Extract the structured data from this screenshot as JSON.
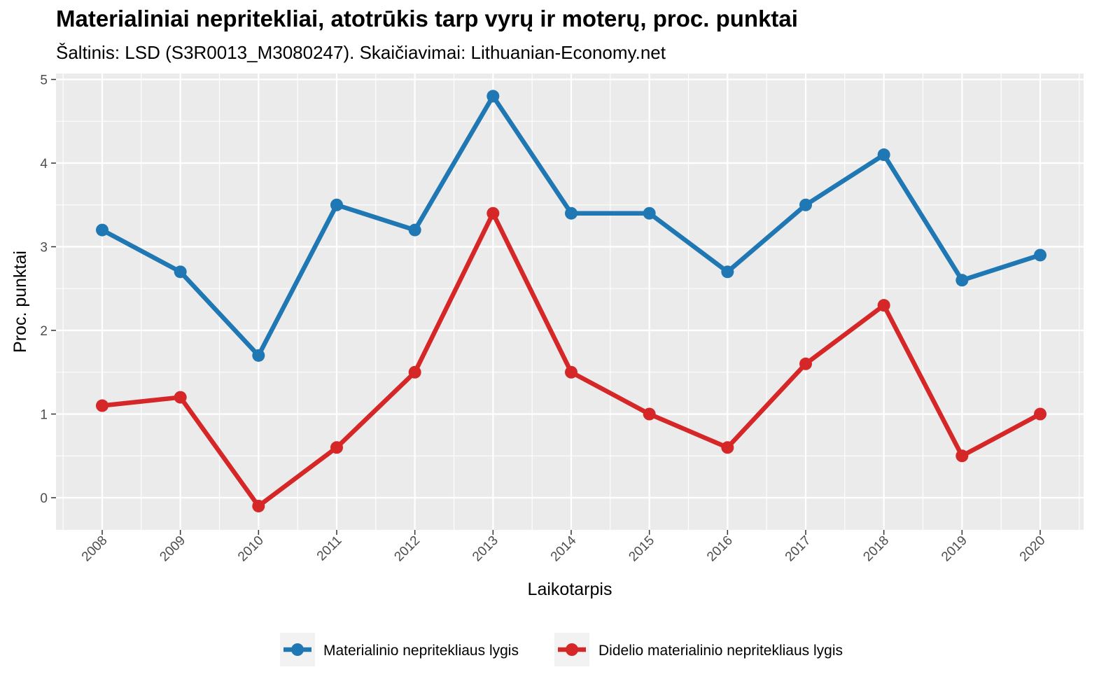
{
  "chart_data": {
    "type": "line",
    "title": "Materialiniai nepritekliai, atotrūkis tarp vyrų ir moterų, proc. punktai",
    "subtitle": "Šaltinis: LSD (S3R0013_M3080247). Skaičiavimai: Lithuanian-Economy.net",
    "xlabel": "Laikotarpis",
    "ylabel": "Proc. punktai",
    "x": [
      "2008",
      "2009",
      "2010",
      "2011",
      "2012",
      "2013",
      "2014",
      "2015",
      "2016",
      "2017",
      "2018",
      "2019",
      "2020"
    ],
    "ylim": [
      -0.35,
      5.0
    ],
    "yticks": [
      0,
      1,
      2,
      3,
      4,
      5
    ],
    "grid": true,
    "legend_position": "bottom",
    "series": [
      {
        "name": "Materialinio nepritekliaus lygis",
        "color": "#1f77b4",
        "values": [
          3.2,
          2.7,
          1.7,
          3.5,
          3.2,
          4.8,
          3.4,
          3.4,
          2.7,
          3.5,
          4.1,
          2.6,
          2.9
        ]
      },
      {
        "name": "Didelio materialinio nepritekliaus lygis",
        "color": "#d62728",
        "values": [
          1.1,
          1.2,
          -0.1,
          0.6,
          1.5,
          3.4,
          1.5,
          1.0,
          0.6,
          1.6,
          2.3,
          0.5,
          1.0
        ]
      }
    ]
  }
}
